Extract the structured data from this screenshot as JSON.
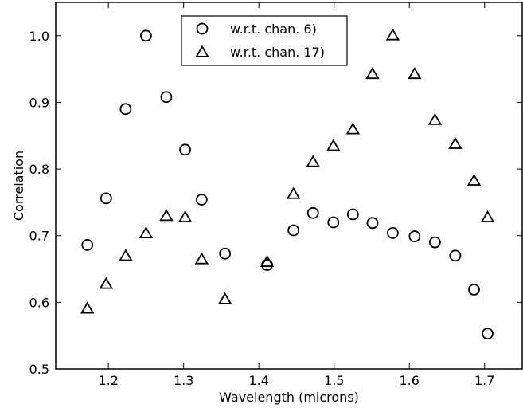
{
  "chart_data": {
    "type": "scatter",
    "xlabel": "Wavelength (microns)",
    "ylabel": "Correlation",
    "xlim": [
      1.13,
      1.75
    ],
    "ylim": [
      0.5,
      1.05
    ],
    "x_ticks": [
      "1.2",
      "1.3",
      "1.4",
      "1.5",
      "1.6",
      "1.7"
    ],
    "x_tick_values": [
      1.2,
      1.3,
      1.4,
      1.5,
      1.6,
      1.7
    ],
    "y_ticks": [
      "0.5",
      "0.6",
      "0.7",
      "0.8",
      "0.9",
      "1.0"
    ],
    "y_tick_values": [
      0.5,
      0.6,
      0.7,
      0.8,
      0.9,
      1.0
    ],
    "grid": false,
    "legend_position": "top-center",
    "series": [
      {
        "name": "w.r.t. chan. 6)",
        "marker": "circle",
        "color": "#000000",
        "points": [
          [
            1.172,
            0.686
          ],
          [
            1.197,
            0.756
          ],
          [
            1.223,
            0.89
          ],
          [
            1.25,
            1.0
          ],
          [
            1.277,
            0.908
          ],
          [
            1.302,
            0.829
          ],
          [
            1.324,
            0.754
          ],
          [
            1.355,
            0.673
          ],
          [
            1.411,
            0.656
          ],
          [
            1.446,
            0.708
          ],
          [
            1.472,
            0.734
          ],
          [
            1.499,
            0.72
          ],
          [
            1.525,
            0.732
          ],
          [
            1.551,
            0.719
          ],
          [
            1.578,
            0.704
          ],
          [
            1.607,
            0.699
          ],
          [
            1.634,
            0.69
          ],
          [
            1.661,
            0.67
          ],
          [
            1.686,
            0.619
          ],
          [
            1.704,
            0.553
          ]
        ]
      },
      {
        "name": "w.r.t. chan. 17)",
        "marker": "triangle",
        "color": "#000000",
        "points": [
          [
            1.172,
            0.59
          ],
          [
            1.197,
            0.627
          ],
          [
            1.223,
            0.669
          ],
          [
            1.25,
            0.703
          ],
          [
            1.277,
            0.729
          ],
          [
            1.302,
            0.727
          ],
          [
            1.324,
            0.664
          ],
          [
            1.355,
            0.604
          ],
          [
            1.411,
            0.66
          ],
          [
            1.446,
            0.762
          ],
          [
            1.472,
            0.81
          ],
          [
            1.499,
            0.834
          ],
          [
            1.525,
            0.859
          ],
          [
            1.551,
            0.942
          ],
          [
            1.578,
            1.0
          ],
          [
            1.607,
            0.942
          ],
          [
            1.634,
            0.873
          ],
          [
            1.661,
            0.837
          ],
          [
            1.686,
            0.782
          ],
          [
            1.704,
            0.727
          ]
        ]
      }
    ]
  }
}
